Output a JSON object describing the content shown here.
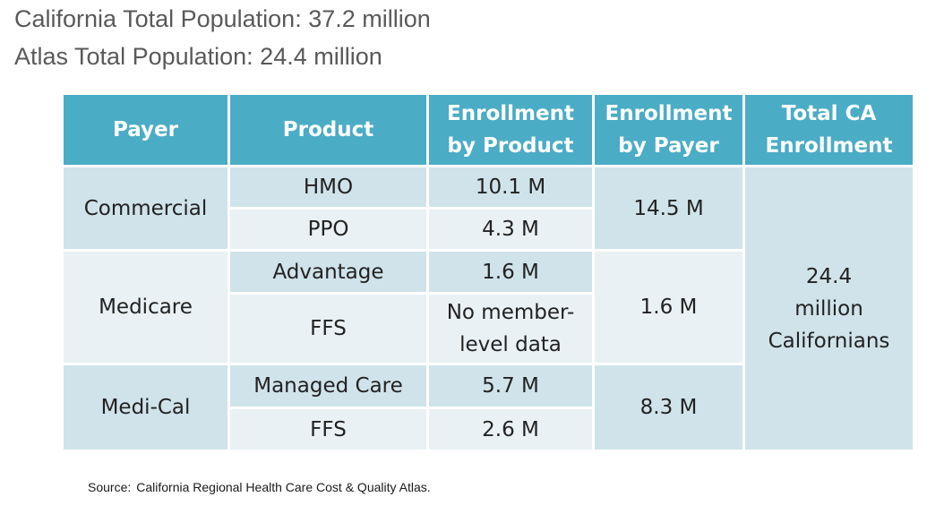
{
  "header": {
    "line1": "California Total Population: 37.2 million",
    "line2": "Atlas Total Population: 24.4 million"
  },
  "table": {
    "columns": {
      "payer": "Payer",
      "product": "Product",
      "enrollment_by_product_l1": "Enrollment",
      "enrollment_by_product_l2": "by Product",
      "enrollment_by_payer_l1": "Enrollment",
      "enrollment_by_payer_l2": "by Payer",
      "total_l1": "Total CA",
      "total_l2": "Enrollment"
    },
    "payers": {
      "commercial": {
        "name": "Commercial",
        "by_payer": "14.5 M",
        "products": [
          {
            "name": "HMO",
            "enrollment": "10.1 M"
          },
          {
            "name": "PPO",
            "enrollment": "4.3 M"
          }
        ]
      },
      "medicare": {
        "name": "Medicare",
        "by_payer": "1.6 M",
        "products": [
          {
            "name": "Advantage",
            "enrollment": "1.6 M"
          },
          {
            "name": "FFS",
            "enrollment_l1": "No member-",
            "enrollment_l2": "level data"
          }
        ]
      },
      "medical": {
        "name": "Medi-Cal",
        "by_payer": "8.3 M",
        "products": [
          {
            "name": "Managed Care",
            "enrollment": "5.7 M"
          },
          {
            "name": "FFS",
            "enrollment": "2.6 M"
          }
        ]
      }
    },
    "total": {
      "l1": "24.4",
      "l2": "million",
      "l3": "Californians"
    }
  },
  "footer": {
    "source_label": "Source:",
    "source_text": "California Regional Health Care Cost & Quality Atlas."
  }
}
